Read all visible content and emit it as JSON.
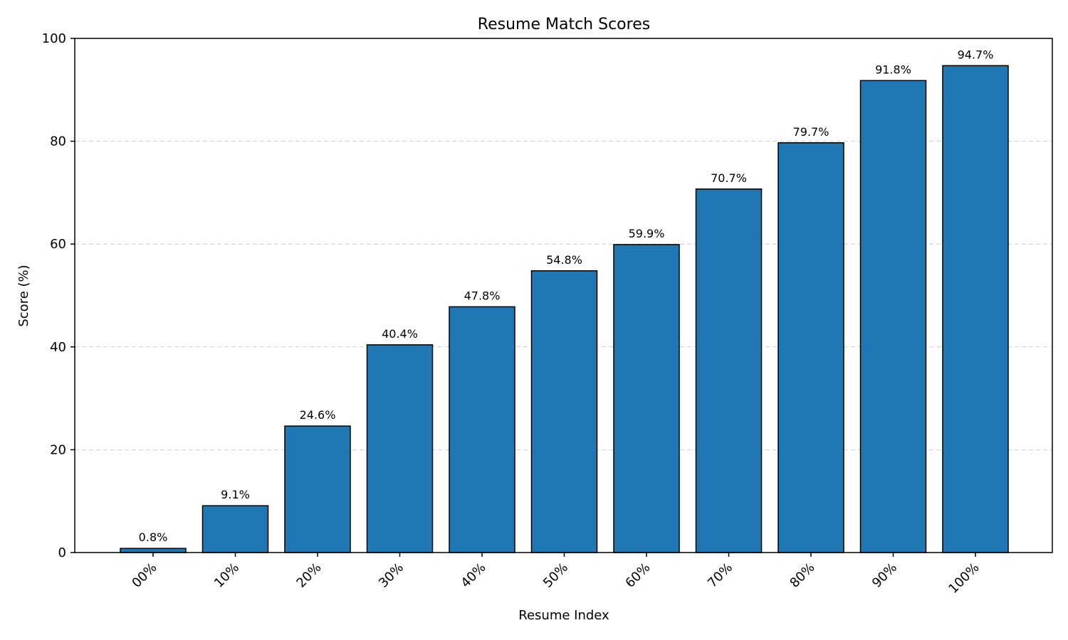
{
  "chart_data": {
    "type": "bar",
    "title": "Resume Match Scores",
    "xlabel": "Resume Index",
    "ylabel": "Score (%)",
    "categories": [
      "00%",
      "10%",
      "20%",
      "30%",
      "40%",
      "50%",
      "60%",
      "70%",
      "80%",
      "90%",
      "100%"
    ],
    "values": [
      0.8,
      9.1,
      24.6,
      40.4,
      47.8,
      54.8,
      59.9,
      70.7,
      79.7,
      91.8,
      94.7
    ],
    "data_labels": [
      "0.8%",
      "9.1%",
      "24.6%",
      "40.4%",
      "47.8%",
      "54.8%",
      "59.9%",
      "70.7%",
      "79.7%",
      "91.8%",
      "94.7%"
    ],
    "ylim": [
      0,
      100
    ],
    "yticks": [
      0,
      20,
      40,
      60,
      80,
      100
    ],
    "grid": "y-dashed",
    "bar_color": "#1f77b4",
    "edge_color": "#000000"
  }
}
